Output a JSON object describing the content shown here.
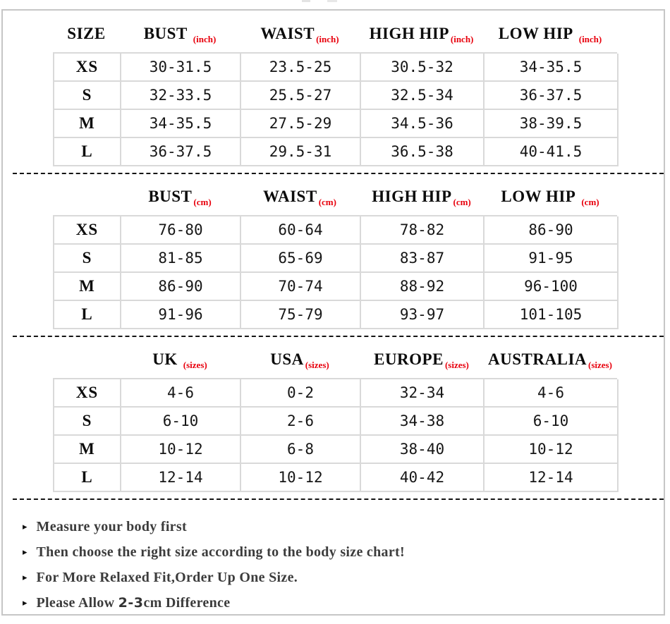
{
  "colors": {
    "accent_red": "#e8000d",
    "grid_line": "#d9d9d9",
    "outer_border": "#c6c6c6",
    "data_text": "#161616",
    "note_text": "#3c3c3c"
  },
  "chart_data": [
    {
      "type": "table",
      "name": "inches",
      "columns": [
        {
          "label": "SIZE",
          "unit": ""
        },
        {
          "label": "BUST",
          "unit": "(inch)",
          "gap": true
        },
        {
          "label": "WAIST",
          "unit": "(inch)"
        },
        {
          "label": "HIGH HIP",
          "unit": "(inch)"
        },
        {
          "label": "LOW HIP",
          "unit": "(inch)",
          "gap": true
        }
      ],
      "rows": [
        {
          "size": "XS",
          "values": [
            "30-31.5",
            "23.5-25",
            "30.5-32",
            "34-35.5"
          ]
        },
        {
          "size": "S",
          "values": [
            "32-33.5",
            "25.5-27",
            "32.5-34",
            "36-37.5"
          ]
        },
        {
          "size": "M",
          "values": [
            "34-35.5",
            "27.5-29",
            "34.5-36",
            "38-39.5"
          ]
        },
        {
          "size": "L",
          "values": [
            "36-37.5",
            "29.5-31",
            "36.5-38",
            "40-41.5"
          ]
        }
      ]
    },
    {
      "type": "table",
      "name": "centimeters",
      "columns": [
        {
          "label": "",
          "unit": ""
        },
        {
          "label": "BUST",
          "unit": "(cm)"
        },
        {
          "label": "WAIST",
          "unit": "(cm)"
        },
        {
          "label": "HIGH HIP",
          "unit": "(cm)"
        },
        {
          "label": "LOW HIP",
          "unit": "(cm)",
          "gap": true
        }
      ],
      "rows": [
        {
          "size": "XS",
          "values": [
            "76-80",
            "60-64",
            "78-82",
            "86-90"
          ]
        },
        {
          "size": "S",
          "values": [
            "81-85",
            "65-69",
            "83-87",
            "91-95"
          ]
        },
        {
          "size": "M",
          "values": [
            "86-90",
            "70-74",
            "88-92",
            "96-100"
          ]
        },
        {
          "size": "L",
          "values": [
            "91-96",
            "75-79",
            "93-97",
            "101-105"
          ]
        }
      ]
    },
    {
      "type": "table",
      "name": "international-sizes",
      "columns": [
        {
          "label": "",
          "unit": ""
        },
        {
          "label": "UK",
          "unit": "(sizes)",
          "gap": true
        },
        {
          "label": "USA",
          "unit": "(sizes)"
        },
        {
          "label": "EUROPE",
          "unit": "(sizes)"
        },
        {
          "label": "AUSTRALIA",
          "unit": "(sizes)"
        }
      ],
      "rows": [
        {
          "size": "XS",
          "values": [
            "4-6",
            "0-2",
            "32-34",
            "4-6"
          ]
        },
        {
          "size": "S",
          "values": [
            "6-10",
            "2-6",
            "34-38",
            "6-10"
          ]
        },
        {
          "size": "M",
          "values": [
            "10-12",
            "6-8",
            "38-40",
            "10-12"
          ]
        },
        {
          "size": "L",
          "values": [
            "12-14",
            "10-12",
            "40-42",
            "12-14"
          ]
        }
      ]
    }
  ],
  "notes": {
    "bullet_icon": "▸",
    "items": [
      {
        "segments": [
          {
            "text": "Measure your body first",
            "font": "serif"
          }
        ]
      },
      {
        "segments": [
          {
            "text": "Then choose the right size according to the body size chart!",
            "font": "serif"
          }
        ]
      },
      {
        "segments": [
          {
            "text": "For More Relaxed Fit,Order Up One Size.",
            "font": "serif"
          }
        ]
      },
      {
        "segments": [
          {
            "text": "Please Allow ",
            "font": "serif"
          },
          {
            "text": "2-3",
            "font": "sans"
          },
          {
            "text": "cm Difference",
            "font": "serif"
          }
        ]
      }
    ]
  }
}
